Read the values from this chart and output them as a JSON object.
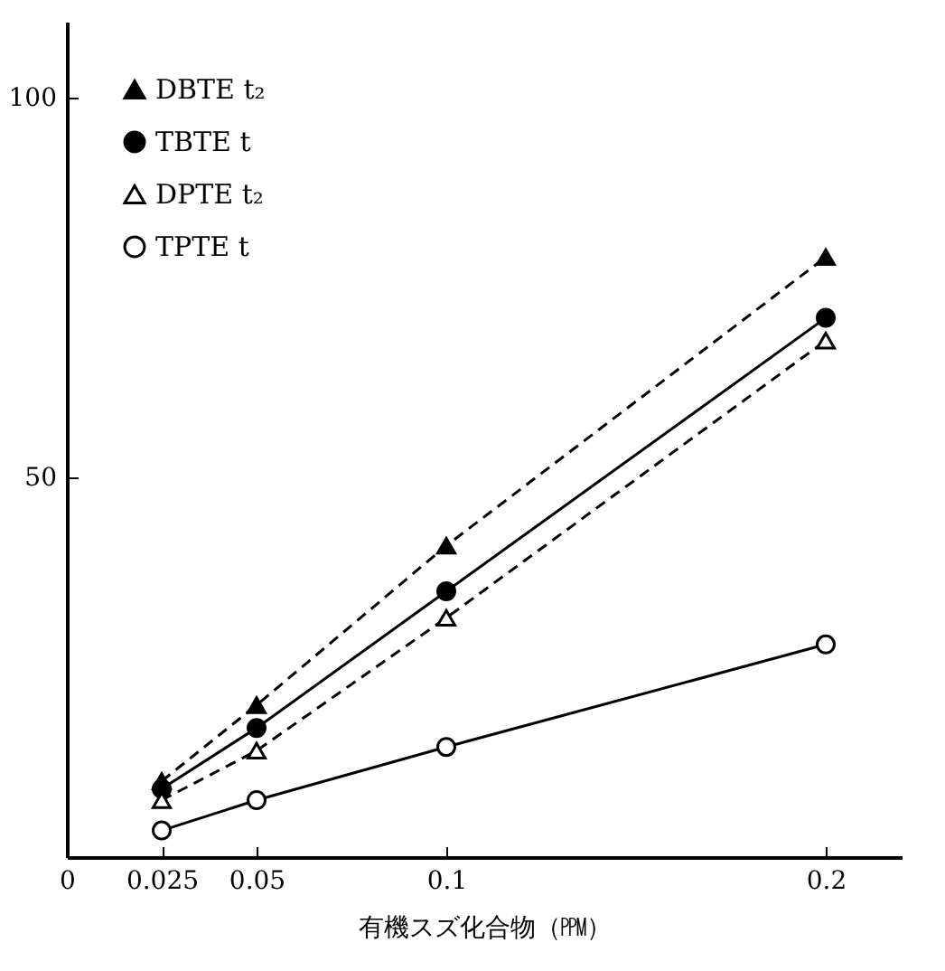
{
  "chart_data": {
    "type": "line",
    "xlabel": "有機スズ化合物（㏙）",
    "x": [
      0.025,
      0.05,
      0.1,
      0.2
    ],
    "series": [
      {
        "name": "DBTE t₂",
        "color": "#000000",
        "values": [
          10,
          20,
          41,
          79
        ],
        "marker": "triangle",
        "line_style": "dashed"
      },
      {
        "name": "TBTE t",
        "color": "#000000",
        "values": [
          9,
          17,
          35,
          71
        ],
        "marker": "circle",
        "line_style": "solid"
      },
      {
        "name": "DPTE t₂",
        "color": "#000000",
        "values": [
          7.5,
          14,
          31.5,
          68
        ],
        "marker": "triangle-open",
        "line_style": "dashed"
      },
      {
        "name": "TPTE t",
        "color": "#000000",
        "values": [
          3.5,
          7.5,
          14.5,
          28
        ],
        "marker": "circle-open",
        "line_style": "solid"
      }
    ],
    "xlim": [
      0,
      0.22
    ],
    "xticks": [
      0,
      0.025,
      0.05,
      0.1,
      0.2
    ],
    "ylim": [
      0,
      110
    ],
    "yticks": [
      50,
      100
    ],
    "grid": false,
    "legend": "top left"
  }
}
